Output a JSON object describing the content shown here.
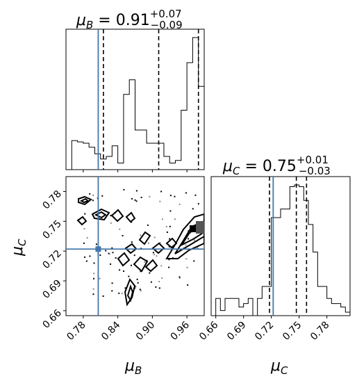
{
  "chart_data": [
    {
      "type": "histogram",
      "panel": "mu_B marginal",
      "title": {
        "main": "μB = 0.91",
        "sym": "μ",
        "sub": "B",
        "value": " = 0.91",
        "plus": "+0.07",
        "minus": "−0.09"
      },
      "xlim": [
        0.75,
        0.99
      ],
      "bin_edges": [
        0.75,
        0.76,
        0.77,
        0.78,
        0.79,
        0.8,
        0.81,
        0.82,
        0.83,
        0.84,
        0.85,
        0.86,
        0.87,
        0.88,
        0.89,
        0.9,
        0.91,
        0.92,
        0.93,
        0.94,
        0.95,
        0.96,
        0.97,
        0.98,
        0.99
      ],
      "counts": [
        0,
        0.22,
        0.21,
        0.2,
        0.17,
        0.12,
        0.08,
        0.1,
        0.18,
        0.05,
        0.57,
        0.68,
        0.3,
        0.3,
        0.2,
        0.2,
        0.2,
        0.1,
        0.05,
        0.07,
        0.45,
        0.81,
        1.0,
        0.63
      ],
      "quantile_lines": [
        0.815,
        0.911,
        0.98
      ],
      "truth_value": 0.806,
      "xticks": [
        0.78,
        0.84,
        0.9,
        0.96
      ],
      "colors": {
        "hist": "#000000",
        "truth": "#4477aa"
      }
    },
    {
      "type": "contour",
      "panel": "mu_B vs mu_C",
      "xlim": [
        0.75,
        0.99
      ],
      "ylim": [
        0.655,
        0.795
      ],
      "xticks": [
        0.78,
        0.84,
        0.9,
        0.96
      ],
      "xtick_labels": [
        "0.78",
        "0.84",
        "0.90",
        "0.96"
      ],
      "yticks": [
        0.66,
        0.69,
        0.72,
        0.75,
        0.78
      ],
      "ytick_labels": [
        "0.66",
        "0.69",
        "0.72",
        "0.75",
        "0.78"
      ],
      "xlabel": {
        "sym": "μ",
        "sub": "B"
      },
      "ylabel": {
        "sym": "μ",
        "sub": "C"
      },
      "truth": {
        "x": 0.806,
        "y": 0.722
      },
      "colors": {
        "contour": "#000000",
        "truth": "#4477aa"
      }
    },
    {
      "type": "histogram",
      "panel": "mu_C marginal",
      "title": {
        "sym": "μ",
        "sub": "C",
        "value": " = 0.75",
        "plus": "+0.01",
        "minus": "−0.03"
      },
      "xlim": [
        0.655,
        0.805
      ],
      "bin_edges": [
        0.655,
        0.66,
        0.665,
        0.67,
        0.675,
        0.68,
        0.685,
        0.69,
        0.695,
        0.7,
        0.705,
        0.71,
        0.715,
        0.72,
        0.725,
        0.73,
        0.735,
        0.74,
        0.745,
        0.75,
        0.755,
        0.76,
        0.765,
        0.77,
        0.775,
        0.78,
        0.785,
        0.79,
        0.795,
        0.8,
        0.805
      ],
      "counts": [
        0,
        0.1,
        0.03,
        0.1,
        0.1,
        0.1,
        0.05,
        0.07,
        0.1,
        0.0,
        0.1,
        0.17,
        0.17,
        0.57,
        0.57,
        0.62,
        0.62,
        0.75,
        0.76,
        0.75,
        0.67,
        0.53,
        0.37,
        0.17,
        0.17,
        0.1,
        0.07,
        0.07,
        0.05,
        0.02
      ],
      "quantile_lines": [
        0.718,
        0.747,
        0.758
      ],
      "truth_value": 0.722,
      "xticks": [
        0.66,
        0.69,
        0.72,
        0.75,
        0.78
      ],
      "xtick_labels": [
        "0.66",
        "0.69",
        "0.72",
        "0.75",
        "0.78"
      ],
      "xlabel": {
        "sym": "μ",
        "sub": "C"
      },
      "colors": {
        "hist": "#000000",
        "truth": "#4477aa"
      }
    }
  ]
}
